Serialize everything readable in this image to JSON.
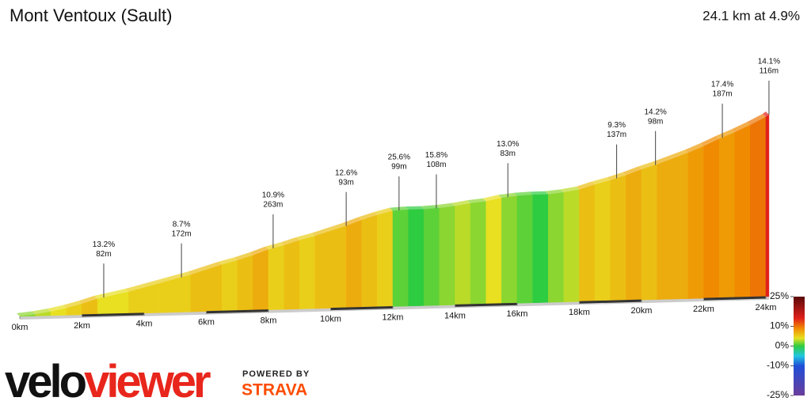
{
  "chart_data": {
    "type": "profile",
    "title": "Mont Ventoux (Sault)",
    "summary": "24.1 km at 4.9%",
    "x": [
      0,
      0.5,
      1,
      1.5,
      2,
      2.5,
      3,
      3.5,
      4,
      4.5,
      5,
      5.5,
      6,
      6.5,
      7,
      7.5,
      8,
      8.5,
      9,
      9.5,
      10,
      10.5,
      11,
      11.5,
      12,
      12.5,
      13,
      13.5,
      14,
      14.5,
      15,
      15.5,
      16,
      16.5,
      17,
      17.5,
      18,
      18.5,
      19,
      19.5,
      20,
      20.5,
      21,
      21.5,
      22,
      22.5,
      23,
      23.5,
      24
    ],
    "values": [
      2,
      3,
      4,
      5,
      6,
      4,
      4,
      5,
      5,
      5,
      5,
      6,
      6,
      5,
      6,
      7,
      5,
      6,
      5,
      6,
      6,
      7,
      6,
      5,
      1,
      0,
      1,
      2,
      3,
      2,
      4,
      2,
      1,
      0,
      2,
      3,
      6,
      5,
      6,
      7,
      6,
      7,
      7,
      8,
      9,
      8,
      9,
      10,
      14
    ],
    "xlim": [
      0,
      24.1
    ],
    "xticks": [
      {
        "value": 0,
        "label": "0km"
      },
      {
        "value": 2,
        "label": "2km"
      },
      {
        "value": 4,
        "label": "4km"
      },
      {
        "value": 6,
        "label": "6km"
      },
      {
        "value": 8,
        "label": "8km"
      },
      {
        "value": 10,
        "label": "10km"
      },
      {
        "value": 12,
        "label": "12km"
      },
      {
        "value": 14,
        "label": "14km"
      },
      {
        "value": 16,
        "label": "16km"
      },
      {
        "value": 18,
        "label": "18km"
      },
      {
        "value": 20,
        "label": "20km"
      },
      {
        "value": 22,
        "label": "22km"
      },
      {
        "value": 24,
        "label": "24km"
      }
    ],
    "annotations": [
      {
        "x": 2.7,
        "gradient": "13.2%",
        "length": "82m"
      },
      {
        "x": 5.2,
        "gradient": "8.7%",
        "length": "172m"
      },
      {
        "x": 8.15,
        "gradient": "10.9%",
        "length": "263m"
      },
      {
        "x": 10.5,
        "gradient": "12.6%",
        "length": "93m"
      },
      {
        "x": 12.2,
        "gradient": "25.6%",
        "length": "99m"
      },
      {
        "x": 13.4,
        "gradient": "15.8%",
        "length": "108m"
      },
      {
        "x": 15.7,
        "gradient": "13.0%",
        "length": "83m"
      },
      {
        "x": 19.2,
        "gradient": "9.3%",
        "length": "137m"
      },
      {
        "x": 20.45,
        "gradient": "14.2%",
        "length": "98m"
      },
      {
        "x": 22.6,
        "gradient": "17.4%",
        "length": "187m"
      },
      {
        "x": 24.1,
        "gradient": "14.1%",
        "length": "116m"
      }
    ],
    "colorbar": {
      "lim": [
        -25,
        25
      ],
      "ticks": [
        {
          "value": 25,
          "label": "25%"
        },
        {
          "value": 10,
          "label": "10%"
        },
        {
          "value": 0,
          "label": "0%"
        },
        {
          "value": -10,
          "label": "-10%"
        },
        {
          "value": -25,
          "label": "-25%"
        }
      ],
      "scale": [
        [
          -25,
          "#6a3d9a"
        ],
        [
          -10,
          "#1f4fd8"
        ],
        [
          -5,
          "#22c7e0"
        ],
        [
          0,
          "#2ecc40"
        ],
        [
          4,
          "#e8e020"
        ],
        [
          9,
          "#f08a00"
        ],
        [
          14,
          "#e0201a"
        ],
        [
          25,
          "#5a0a0a"
        ]
      ]
    },
    "logo": {
      "parts": [
        "velo",
        "viewer"
      ],
      "powered": "POWERED BY",
      "strava": "STRAVA"
    }
  }
}
